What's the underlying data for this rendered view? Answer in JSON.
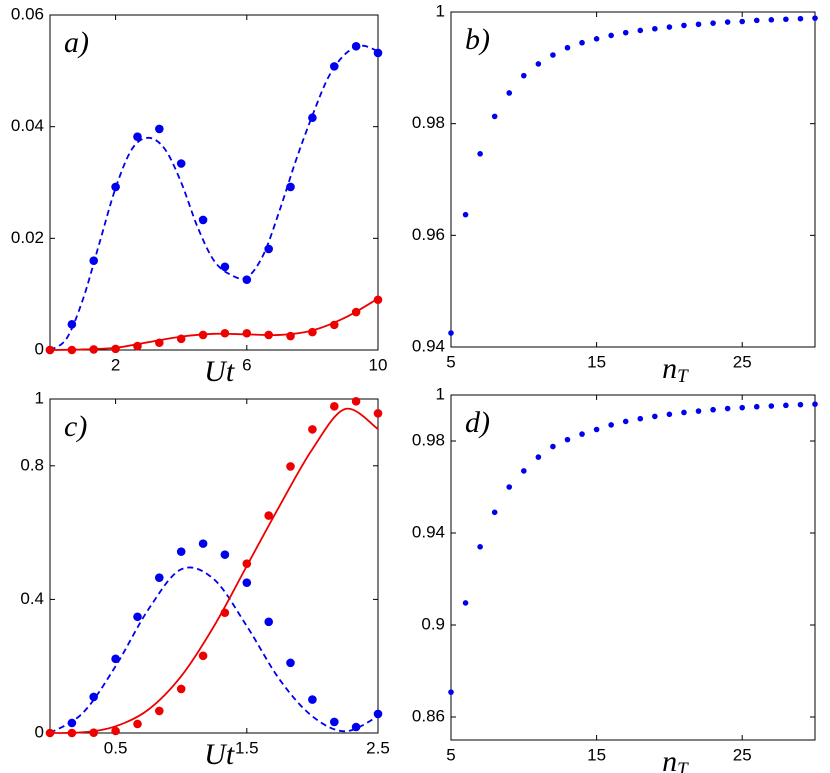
{
  "chart_data": [
    {
      "type": "line",
      "panel_label": "a)",
      "xlabel": "Ut",
      "xlim": [
        0,
        10
      ],
      "xticks": [
        2,
        6,
        10
      ],
      "ylim": [
        0,
        0.06
      ],
      "yticks": [
        0,
        0.02,
        0.04,
        0.06
      ],
      "series": [
        {
          "color": "#0000ee",
          "style": "dots",
          "x": [
            0,
            0.667,
            1.333,
            2,
            2.667,
            3.333,
            4,
            4.667,
            5.333,
            6,
            6.667,
            7.333,
            8,
            8.667,
            9.333,
            10
          ],
          "values": [
            0,
            0.0046,
            0.016,
            0.0292,
            0.0382,
            0.0396,
            0.0334,
            0.0233,
            0.0149,
            0.0126,
            0.0181,
            0.0292,
            0.0416,
            0.0508,
            0.0544,
            0.0532
          ]
        },
        {
          "color": "#0000ee",
          "style": "dashed",
          "x": [
            0,
            0.5,
            1,
            1.5,
            2,
            2.5,
            3,
            3.5,
            4,
            4.5,
            5,
            5.5,
            6,
            6.5,
            7,
            7.5,
            8,
            8.5,
            9,
            9.5,
            10
          ],
          "values": [
            0,
            0.002,
            0.009,
            0.019,
            0.029,
            0.036,
            0.038,
            0.036,
            0.03,
            0.022,
            0.016,
            0.0135,
            0.013,
            0.017,
            0.025,
            0.034,
            0.042,
            0.049,
            0.053,
            0.0545,
            0.0535
          ]
        },
        {
          "color": "#ee0000",
          "style": "dots",
          "x": [
            0,
            0.667,
            1.333,
            2,
            2.667,
            3.333,
            4,
            4.667,
            5.333,
            6,
            6.667,
            7.333,
            8,
            8.667,
            9.333,
            10
          ],
          "values": [
            0,
            0,
            0.0001,
            0.0002,
            0.0007,
            0.0013,
            0.002,
            0.0027,
            0.003,
            0.003,
            0.0027,
            0.0025,
            0.0032,
            0.0045,
            0.0068,
            0.009
          ]
        },
        {
          "color": "#ee0000",
          "style": "solid",
          "x": [
            0,
            1,
            2,
            3,
            4,
            5,
            6,
            7,
            8,
            9,
            10
          ],
          "values": [
            0,
            0.0001,
            0.0004,
            0.0014,
            0.0024,
            0.0029,
            0.0028,
            0.0027,
            0.0035,
            0.0058,
            0.0092
          ]
        }
      ]
    },
    {
      "type": "scatter",
      "panel_label": "b)",
      "xlabel": "n",
      "xlabel_subscript": "T",
      "xlim": [
        5,
        30
      ],
      "xticks": [
        5,
        15,
        25
      ],
      "ylim": [
        0.94,
        1
      ],
      "yticks": [
        0.94,
        0.96,
        0.98,
        1
      ],
      "series": [
        {
          "color": "#0000ee",
          "style": "dots",
          "x": [
            5,
            6,
            7,
            8,
            9,
            10,
            11,
            12,
            13,
            14,
            15,
            16,
            17,
            18,
            19,
            20,
            21,
            22,
            23,
            24,
            25,
            26,
            27,
            28,
            29,
            30
          ],
          "values": [
            0.9425,
            0.9637,
            0.9746,
            0.9813,
            0.9855,
            0.9886,
            0.9907,
            0.9923,
            0.9936,
            0.9945,
            0.9952,
            0.9958,
            0.9963,
            0.9967,
            0.997,
            0.9973,
            0.9976,
            0.9978,
            0.998,
            0.9982,
            0.9983,
            0.9985,
            0.9986,
            0.9987,
            0.9988,
            0.9989
          ]
        }
      ]
    },
    {
      "type": "line",
      "panel_label": "c)",
      "xlabel": "Ut",
      "xlim": [
        0,
        2.5
      ],
      "xticks": [
        0.5,
        1.5,
        2.5
      ],
      "ylim": [
        0,
        1
      ],
      "yticks": [
        0,
        0.4,
        0.8,
        1
      ],
      "series": [
        {
          "color": "#0000ee",
          "style": "dots",
          "x": [
            0.167,
            0.333,
            0.5,
            0.667,
            0.833,
            1,
            1.167,
            1.333,
            1.5,
            1.667,
            1.833,
            2,
            2.167,
            2.333,
            2.5
          ],
          "values": [
            0.03,
            0.108,
            0.222,
            0.348,
            0.465,
            0.543,
            0.567,
            0.534,
            0.45,
            0.333,
            0.21,
            0.1,
            0.033,
            0.018,
            0.057
          ]
        },
        {
          "color": "#0000ee",
          "style": "dashed",
          "x": [
            0,
            0.25,
            0.5,
            0.75,
            1,
            1.25,
            1.5,
            1.75,
            2,
            2.25,
            2.5
          ],
          "values": [
            0,
            0.06,
            0.2,
            0.37,
            0.49,
            0.46,
            0.32,
            0.16,
            0.05,
            0.005,
            0.05
          ]
        },
        {
          "color": "#ee0000",
          "style": "dots",
          "x": [
            0,
            0.167,
            0.333,
            0.5,
            0.667,
            0.833,
            1,
            1.167,
            1.333,
            1.5,
            1.667,
            1.833,
            2,
            2.167,
            2.333,
            2.5
          ],
          "values": [
            0,
            0,
            0.001,
            0.006,
            0.027,
            0.066,
            0.132,
            0.231,
            0.36,
            0.507,
            0.651,
            0.798,
            0.909,
            0.978,
            0.993,
            0.957
          ]
        },
        {
          "color": "#ee0000",
          "style": "solid",
          "x": [
            0,
            0.25,
            0.5,
            0.75,
            1,
            1.25,
            1.5,
            1.75,
            2,
            2.25,
            2.5
          ],
          "values": [
            0,
            0.002,
            0.02,
            0.07,
            0.17,
            0.32,
            0.5,
            0.68,
            0.85,
            0.97,
            0.91
          ]
        }
      ]
    },
    {
      "type": "scatter",
      "panel_label": "d)",
      "xlabel": "n",
      "xlabel_subscript": "T",
      "xlim": [
        5,
        30
      ],
      "xticks": [
        5,
        15,
        25
      ],
      "ylim": [
        0.85,
        1
      ],
      "yticks": [
        0.86,
        0.9,
        0.94,
        0.98,
        1
      ],
      "series": [
        {
          "color": "#0000ee",
          "style": "dots",
          "x": [
            5,
            6,
            7,
            8,
            9,
            10,
            11,
            12,
            13,
            14,
            15,
            16,
            17,
            18,
            19,
            20,
            21,
            22,
            23,
            24,
            25,
            26,
            27,
            28,
            29,
            30
          ],
          "values": [
            0.8708,
            0.9096,
            0.934,
            0.949,
            0.96,
            0.967,
            0.973,
            0.9776,
            0.9806,
            0.983,
            0.985,
            0.987,
            0.9885,
            0.9897,
            0.9907,
            0.9916,
            0.9924,
            0.993,
            0.9936,
            0.9941,
            0.9945,
            0.9949,
            0.9952,
            0.9955,
            0.9958,
            0.996
          ]
        }
      ]
    }
  ]
}
